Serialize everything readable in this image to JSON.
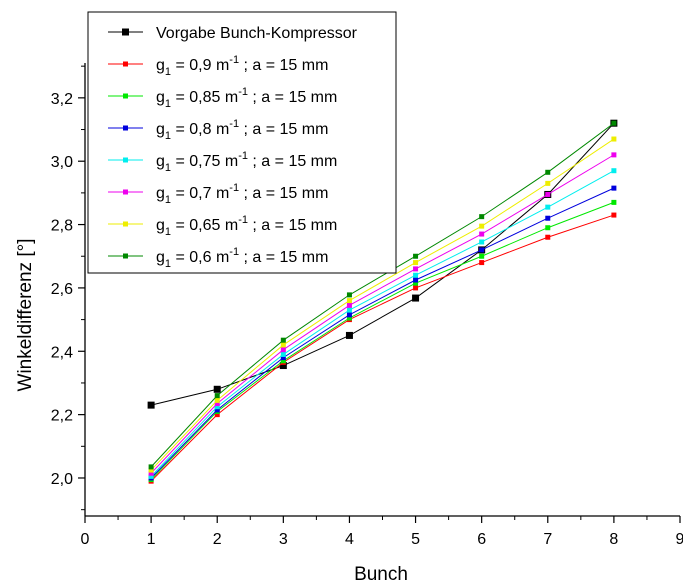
{
  "chart_data": {
    "type": "line",
    "xlabel": "Bunch",
    "ylabel": "Winkeldifferenz [°]",
    "xlim": [
      0,
      9
    ],
    "ylim": [
      1.88,
      3.31
    ],
    "x_ticks": [
      0,
      1,
      2,
      3,
      4,
      5,
      6,
      7,
      8,
      9
    ],
    "x_tick_labels": [
      "0",
      "1",
      "2",
      "3",
      "4",
      "5",
      "6",
      "7",
      "8",
      "9"
    ],
    "y_ticks": [
      2.0,
      2.2,
      2.4,
      2.6,
      2.8,
      3.0,
      3.2
    ],
    "y_tick_labels": [
      "2,0",
      "2,2",
      "2,4",
      "2,6",
      "2,8",
      "3,0",
      "3,2"
    ],
    "grid": false,
    "legend_position": "top-left",
    "x": [
      1,
      2,
      3,
      4,
      5,
      6,
      7,
      8
    ],
    "series": [
      {
        "name": "Vorgabe Bunch-Kompressor",
        "legend": {
          "g": "",
          "sub": "",
          "mid": "",
          "sup": "",
          "rest": "Vorgabe Bunch-Kompressor"
        },
        "color": "#000000",
        "values": [
          2.23,
          2.28,
          2.355,
          2.45,
          2.568,
          2.72,
          2.895,
          3.12
        ]
      },
      {
        "name": "g1 = 0,9 m-1 ; a = 15 mm",
        "legend": {
          "g": "g",
          "sub": "1",
          "mid": " = 0,9 m",
          "sup": "-1",
          "rest": " ; a = 15 mm"
        },
        "color": "#ff0000",
        "values": [
          1.99,
          2.2,
          2.365,
          2.5,
          2.6,
          2.68,
          2.76,
          2.83
        ]
      },
      {
        "name": "g1 = 0,85 m-1 ; a = 15 mm",
        "legend": {
          "g": "g",
          "sub": "1",
          "mid": " = 0,85 m",
          "sup": "-1",
          "rest": " ; a = 15 mm"
        },
        "color": "#00e800",
        "values": [
          1.995,
          2.21,
          2.37,
          2.505,
          2.615,
          2.7,
          2.79,
          2.87
        ]
      },
      {
        "name": "g1 = 0,8 m-1 ; a = 15 mm",
        "legend": {
          "g": "g",
          "sub": "1",
          "mid": " = 0,8 m",
          "sup": "-1",
          "rest": " ; a = 15 mm"
        },
        "color": "#0000dd",
        "values": [
          2.0,
          2.215,
          2.38,
          2.515,
          2.625,
          2.72,
          2.82,
          2.915
        ]
      },
      {
        "name": "g1 = 0,75 m-1 ; a = 15 mm",
        "legend": {
          "g": "g",
          "sub": "1",
          "mid": " = 0,75 m",
          "sup": "-1",
          "rest": " ; a = 15 mm"
        },
        "color": "#00eeee",
        "values": [
          2.005,
          2.225,
          2.39,
          2.53,
          2.64,
          2.745,
          2.855,
          2.97
        ]
      },
      {
        "name": "g1 = 0,7 m-1 ; a = 15 mm",
        "legend": {
          "g": "g",
          "sub": "1",
          "mid": " = 0,7 m",
          "sup": "-1",
          "rest": " ; a = 15 mm"
        },
        "color": "#ee00ee",
        "values": [
          2.015,
          2.235,
          2.405,
          2.545,
          2.66,
          2.77,
          2.895,
          3.02
        ]
      },
      {
        "name": "g1 = 0,65 m-1 ; a = 15 mm",
        "legend": {
          "g": "g",
          "sub": "1",
          "mid": " = 0,65 m",
          "sup": "-1",
          "rest": " ; a = 15 mm"
        },
        "color": "#eeee00",
        "values": [
          2.025,
          2.245,
          2.42,
          2.56,
          2.68,
          2.795,
          2.93,
          3.07
        ]
      },
      {
        "name": "g1 = 0,6 m-1 ; a = 15 mm",
        "legend": {
          "g": "g",
          "sub": "1",
          "mid": " = 0,6 m",
          "sup": "-1",
          "rest": " ; a = 15 mm"
        },
        "color": "#008800",
        "values": [
          2.035,
          2.26,
          2.435,
          2.578,
          2.7,
          2.825,
          2.965,
          3.12
        ]
      }
    ]
  }
}
